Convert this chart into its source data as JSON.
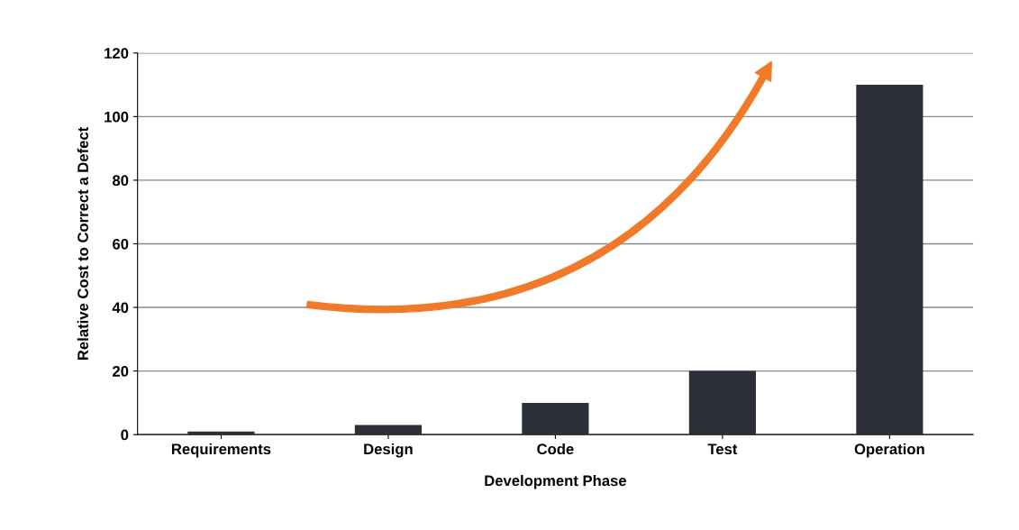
{
  "chart_data": {
    "type": "bar",
    "xlabel": "Development Phase",
    "ylabel": "Relative Cost to Correct a Defect",
    "categories": [
      "Requirements",
      "Design",
      "Code",
      "Test",
      "Operation"
    ],
    "values": [
      1,
      3,
      10,
      20,
      110
    ],
    "color": "#2d3039",
    "ylim": [
      0,
      120
    ],
    "yticks": [
      0,
      20,
      40,
      60,
      80,
      100,
      120
    ],
    "grid": "y"
  }
}
